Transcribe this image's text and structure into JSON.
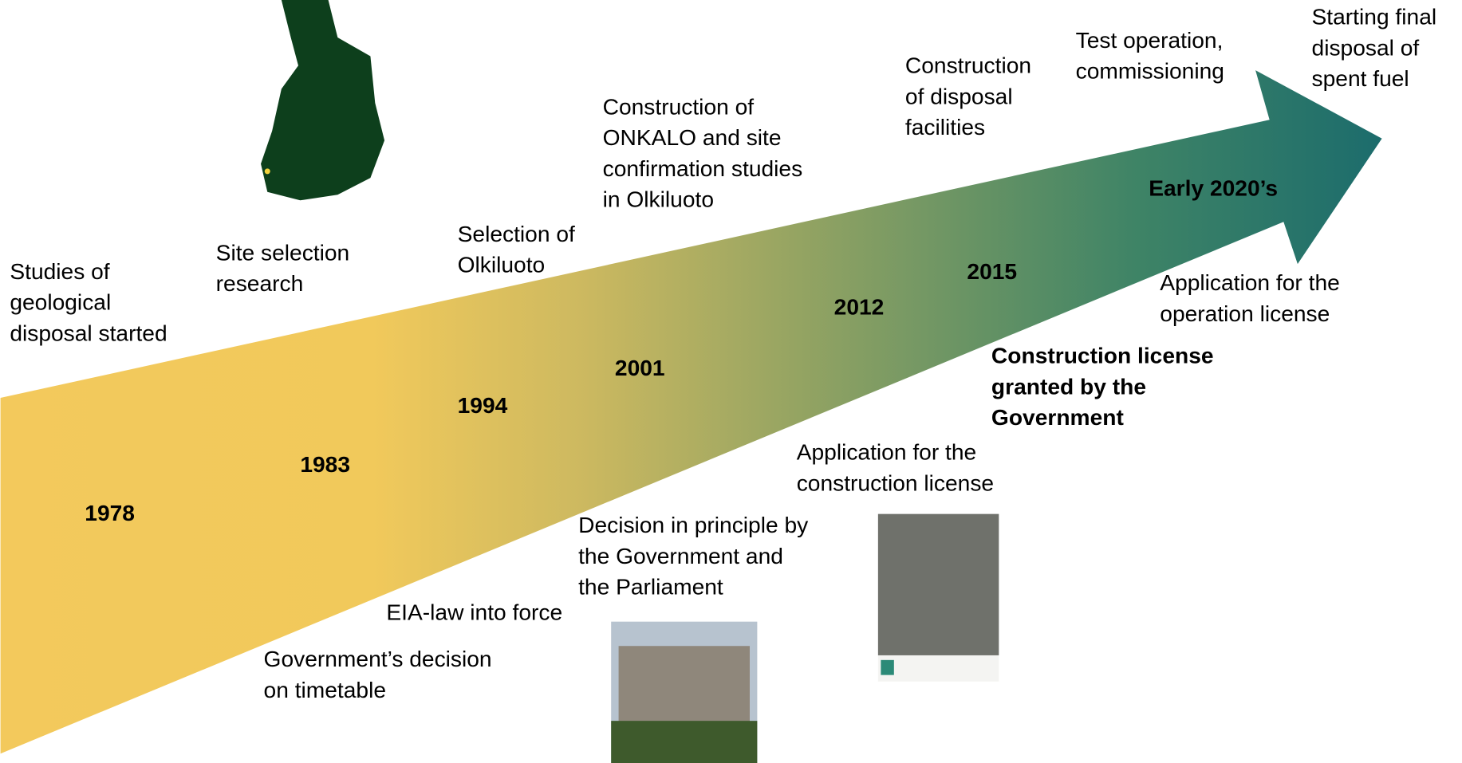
{
  "timeline": {
    "years": [
      "1978",
      "1983",
      "1994",
      "2001",
      "2012",
      "2015",
      "Early 2020’s"
    ],
    "events_above": [
      [
        "Studies of",
        "geological",
        "disposal started"
      ],
      [
        "Site selection",
        "research"
      ],
      [
        "Selection of",
        "Olkiluoto"
      ],
      [
        "Construction of",
        "ONKALO and site",
        "confirmation studies",
        "in Olkiluoto"
      ],
      [
        "Construction",
        "of disposal",
        "facilities"
      ],
      [
        "Test operation,",
        "commissioning"
      ],
      [
        "Starting final",
        "disposal of",
        "spent fuel"
      ]
    ],
    "events_below": [
      [
        "Government’s decision",
        "on timetable"
      ],
      [
        "EIA-law into force"
      ],
      [
        "Decision in principle by",
        "the Government and",
        "the Parliament"
      ],
      [
        "Application for the",
        "construction license"
      ],
      [
        "Construction license",
        "granted by the",
        "Government"
      ],
      [
        "Application for the",
        "operation license"
      ]
    ]
  }
}
